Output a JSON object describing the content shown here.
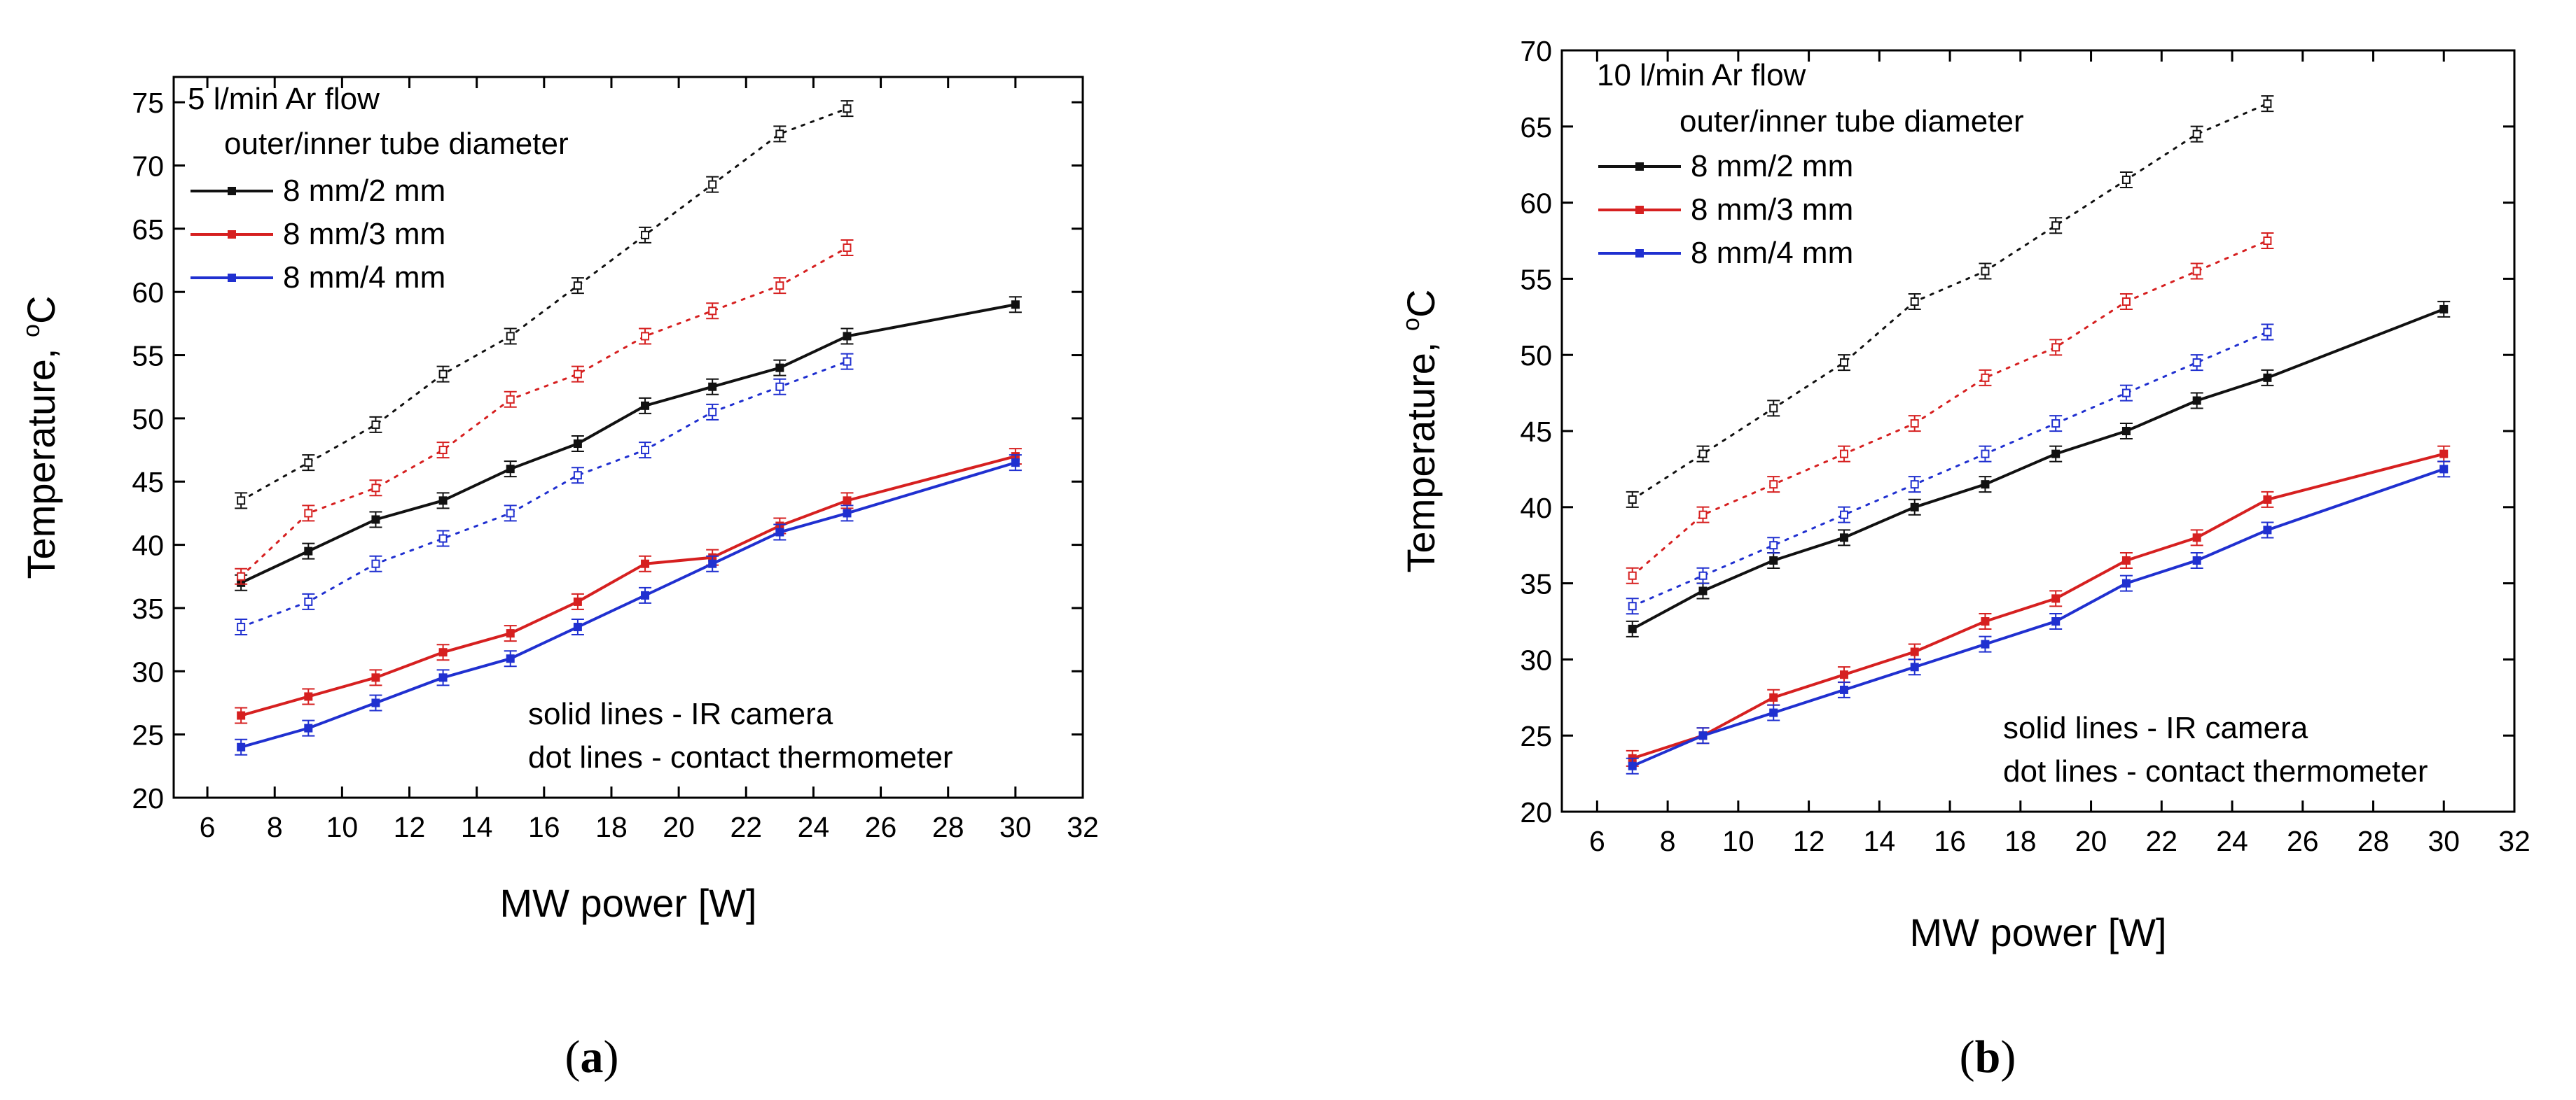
{
  "figure": {
    "captions": [
      {
        "open": "(",
        "letter": "a",
        "close": ")"
      },
      {
        "open": "(",
        "letter": "b",
        "close": ")"
      }
    ]
  },
  "chart_data": [
    {
      "type": "line",
      "title": "5 l/min Ar flow",
      "xlabel": "MW power [W]",
      "ylabel": "Temperature, ",
      "ylabel_sup": "o",
      "ylabel_unit": "C",
      "xlim": [
        5,
        32
      ],
      "ylim": [
        20,
        77
      ],
      "xticks": [
        6,
        8,
        10,
        12,
        14,
        16,
        18,
        20,
        22,
        24,
        26,
        28,
        30,
        32
      ],
      "yticks": [
        20,
        25,
        30,
        35,
        40,
        45,
        50,
        55,
        60,
        65,
        70,
        75
      ],
      "legend_title": "outer/inner tube diameter",
      "legend_position": "top-left",
      "annotations": [
        "solid lines - IR camera",
        "dot lines - contact thermometer"
      ],
      "series": [
        {
          "name": "8 mm/2 mm",
          "color": "#111111",
          "style": "solid",
          "marker": "filled",
          "x": [
            7,
            9,
            11,
            13,
            15,
            17,
            19,
            21,
            23,
            25,
            30
          ],
          "y": [
            37,
            39.5,
            42,
            43.5,
            46,
            48,
            51,
            52.5,
            54,
            56.5,
            59
          ]
        },
        {
          "name": "8 mm/3 mm",
          "color": "#d62020",
          "style": "solid",
          "marker": "filled",
          "x": [
            7,
            9,
            11,
            13,
            15,
            17,
            19,
            21,
            23,
            25,
            30
          ],
          "y": [
            26.5,
            28,
            29.5,
            31.5,
            33,
            35.5,
            38.5,
            39,
            41.5,
            43.5,
            47
          ]
        },
        {
          "name": "8 mm/4 mm",
          "color": "#2030d0",
          "style": "solid",
          "marker": "filled",
          "x": [
            7,
            9,
            11,
            13,
            15,
            17,
            19,
            21,
            23,
            25,
            30
          ],
          "y": [
            24,
            25.5,
            27.5,
            29.5,
            31,
            33.5,
            36,
            38.5,
            41,
            42.5,
            46.5
          ]
        },
        {
          "name": "8 mm/2 mm (contact thermometer)",
          "color": "#111111",
          "style": "dotted",
          "marker": "open",
          "x": [
            7,
            9,
            11,
            13,
            15,
            17,
            19,
            21,
            23,
            25
          ],
          "y": [
            43.5,
            46.5,
            49.5,
            53.5,
            56.5,
            60.5,
            64.5,
            68.5,
            72.5,
            74.5
          ]
        },
        {
          "name": "8 mm/3 mm (contact thermometer)",
          "color": "#d62020",
          "style": "dotted",
          "marker": "open",
          "x": [
            7,
            9,
            11,
            13,
            15,
            17,
            19,
            21,
            23,
            25
          ],
          "y": [
            37.5,
            42.5,
            44.5,
            47.5,
            51.5,
            53.5,
            56.5,
            58.5,
            60.5,
            63.5
          ]
        },
        {
          "name": "8 mm/4 mm (contact thermometer)",
          "color": "#2030d0",
          "style": "dotted",
          "marker": "open",
          "x": [
            7,
            9,
            11,
            13,
            15,
            17,
            19,
            21,
            23,
            25
          ],
          "y": [
            33.5,
            35.5,
            38.5,
            40.5,
            42.5,
            45.5,
            47.5,
            50.5,
            52.5,
            54.5
          ]
        }
      ]
    },
    {
      "type": "line",
      "title": "10 l/min Ar flow",
      "xlabel": "MW power [W]",
      "ylabel": "Temperature, ",
      "ylabel_sup": "o",
      "ylabel_unit": "C",
      "xlim": [
        5,
        32
      ],
      "ylim": [
        20,
        70
      ],
      "xticks": [
        6,
        8,
        10,
        12,
        14,
        16,
        18,
        20,
        22,
        24,
        26,
        28,
        30,
        32
      ],
      "yticks": [
        20,
        25,
        30,
        35,
        40,
        45,
        50,
        55,
        60,
        65,
        70
      ],
      "legend_title": "outer/inner tube diameter",
      "legend_position": "top-left",
      "annotations": [
        "solid lines - IR camera",
        "dot lines - contact thermometer"
      ],
      "series": [
        {
          "name": "8 mm/2 mm",
          "color": "#111111",
          "style": "solid",
          "marker": "filled",
          "x": [
            7,
            9,
            11,
            13,
            15,
            17,
            19,
            21,
            23,
            25,
            30
          ],
          "y": [
            32,
            34.5,
            36.5,
            38,
            40,
            41.5,
            43.5,
            45,
            47,
            48.5,
            53
          ]
        },
        {
          "name": "8 mm/3 mm",
          "color": "#d62020",
          "style": "solid",
          "marker": "filled",
          "x": [
            7,
            9,
            11,
            13,
            15,
            17,
            19,
            21,
            23,
            25,
            30
          ],
          "y": [
            23.5,
            25,
            27.5,
            29,
            30.5,
            32.5,
            34,
            36.5,
            38,
            40.5,
            43.5
          ]
        },
        {
          "name": "8 mm/4 mm",
          "color": "#2030d0",
          "style": "solid",
          "marker": "filled",
          "x": [
            7,
            9,
            11,
            13,
            15,
            17,
            19,
            21,
            23,
            25,
            30
          ],
          "y": [
            23,
            25,
            26.5,
            28,
            29.5,
            31,
            32.5,
            35,
            36.5,
            38.5,
            42.5
          ]
        },
        {
          "name": "8 mm/2 mm (contact thermometer)",
          "color": "#111111",
          "style": "dotted",
          "marker": "open",
          "x": [
            7,
            9,
            11,
            13,
            15,
            17,
            19,
            21,
            23,
            25
          ],
          "y": [
            40.5,
            43.5,
            46.5,
            49.5,
            53.5,
            55.5,
            58.5,
            61.5,
            64.5,
            66.5
          ]
        },
        {
          "name": "8 mm/3 mm (contact thermometer)",
          "color": "#d62020",
          "style": "dotted",
          "marker": "open",
          "x": [
            7,
            9,
            11,
            13,
            15,
            17,
            19,
            21,
            23,
            25
          ],
          "y": [
            35.5,
            39.5,
            41.5,
            43.5,
            45.5,
            48.5,
            50.5,
            53.5,
            55.5,
            57.5
          ]
        },
        {
          "name": "8 mm/4 mm (contact thermometer)",
          "color": "#2030d0",
          "style": "dotted",
          "marker": "open",
          "x": [
            7,
            9,
            11,
            13,
            15,
            17,
            19,
            21,
            23,
            25
          ],
          "y": [
            33.5,
            35.5,
            37.5,
            39.5,
            41.5,
            43.5,
            45.5,
            47.5,
            49.5,
            51.5
          ]
        }
      ]
    }
  ]
}
